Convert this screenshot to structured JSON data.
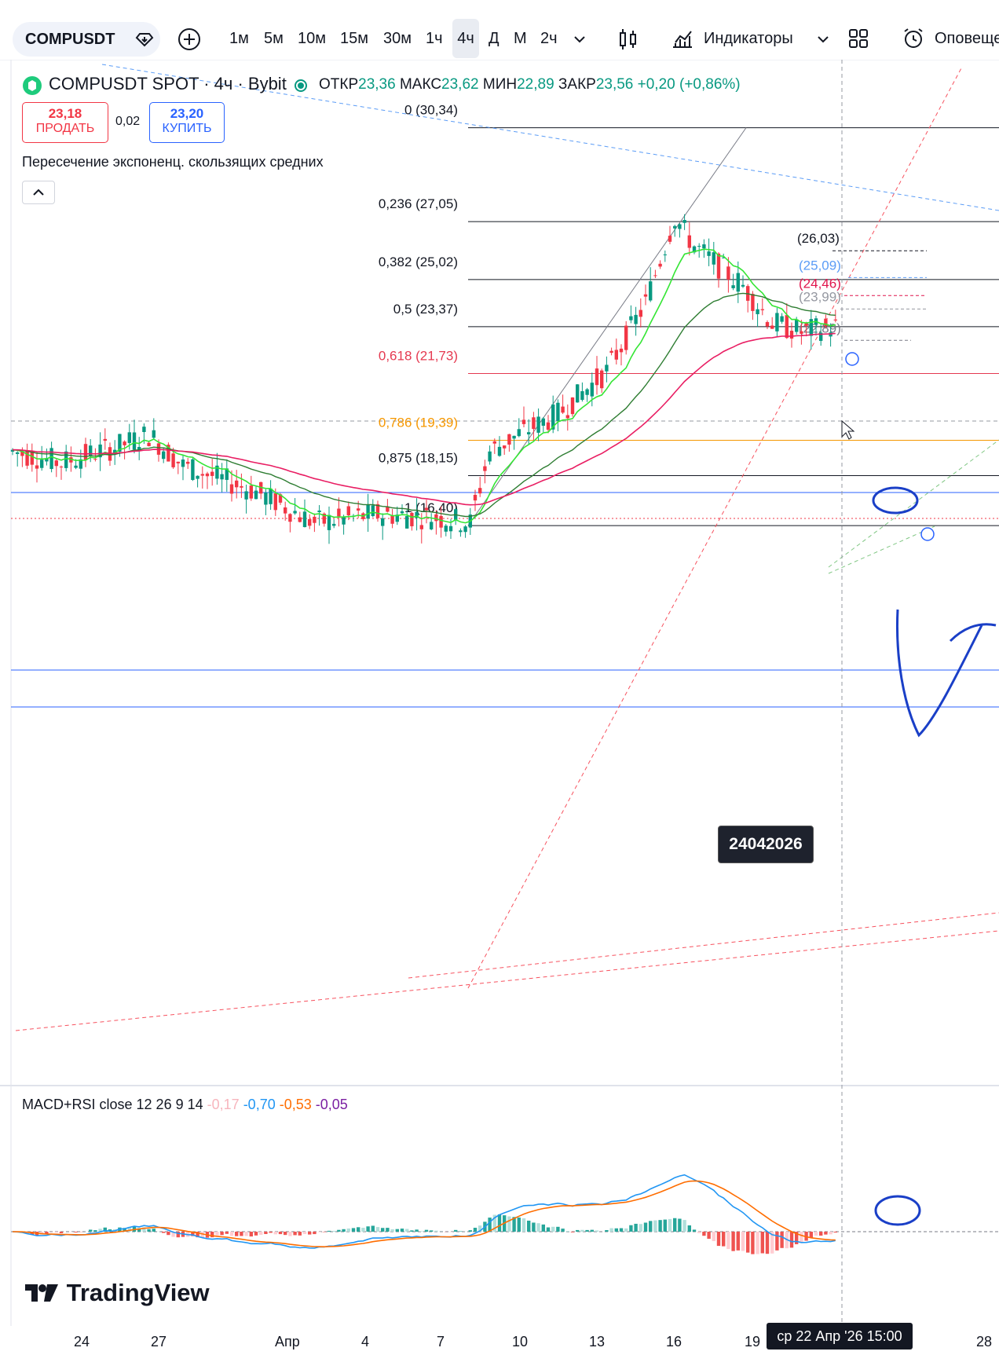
{
  "toolbar": {
    "symbol": "COMPUSDT",
    "intervals": [
      "1м",
      "5м",
      "10м",
      "15м",
      "30м",
      "1ч",
      "4ч",
      "Д",
      "М",
      "2ч"
    ],
    "active_interval": "4ч",
    "indicators_label": "Индикаторы",
    "alerts_label": "Оповеще"
  },
  "legend": {
    "title": "COMPUSDT SPOT · 4ч · Bybit",
    "open_label": "ОТКР",
    "open": "23,36",
    "high_label": "МАКС",
    "high": "23,62",
    "low_label": "МИН",
    "low": "22,89",
    "close_label": "ЗАКР",
    "close": "23,56",
    "change": "+0,20 (+0,86%)",
    "sell_price": "23,18",
    "sell_label": "ПРОДАТЬ",
    "spread": "0,02",
    "buy_price": "23,20",
    "buy_label": "КУПИТЬ",
    "indicator_name": "Пересечение экспоненц. скользящих средних"
  },
  "fib_levels": [
    {
      "label": "0 (30,34)",
      "price": 30.34,
      "color": "#131722"
    },
    {
      "label": "0,236 (27,05)",
      "price": 27.05,
      "color": "#131722"
    },
    {
      "label": "0,382 (25,02)",
      "price": 25.02,
      "color": "#131722"
    },
    {
      "label": "0,5 (23,37)",
      "price": 23.37,
      "color": "#131722"
    },
    {
      "label": "0,618 (21,73)",
      "price": 21.73,
      "color": "#e53950"
    },
    {
      "label": "0,786 (19,39)",
      "price": 19.39,
      "color": "#f59700"
    },
    {
      "label": "0,875 (18,15)",
      "price": 18.15,
      "color": "#131722"
    },
    {
      "label": "1 (16,40)",
      "price": 16.4,
      "color": "#131722"
    }
  ],
  "price_annotations": [
    {
      "label": "(26,03)",
      "price": 26.03,
      "color": "#131722"
    },
    {
      "label": "(25,09)",
      "price": 25.09,
      "color": "#5b9cf6"
    },
    {
      "label": "(24,46)",
      "price": 24.46,
      "color": "#e0144c"
    },
    {
      "label": "(23,99)",
      "price": 23.99,
      "color": "#9598a1"
    },
    {
      "label": "(22,89)",
      "price": 22.89,
      "color": "#787b86"
    }
  ],
  "date_note": "24042026",
  "macd_legend": {
    "name": "MACD+RSI close 12 26 9 14",
    "values": [
      {
        "text": "-0,17",
        "color": "#f7b5bd"
      },
      {
        "text": "-0,70",
        "color": "#2196f3"
      },
      {
        "text": "-0,53",
        "color": "#ff6d00"
      },
      {
        "text": "-0,05",
        "color": "#7b1fa2"
      }
    ]
  },
  "logo": "TradingView",
  "time_axis": [
    "24",
    "27",
    "Апр",
    "4",
    "7",
    "10",
    "13",
    "16",
    "19",
    "28"
  ],
  "crosshair_time": "ср 22 Апр '26   15:00",
  "colors": {
    "up": "#089981",
    "down": "#f23645",
    "ema_fast": "#34e534",
    "ema_mid": "#2e7d32",
    "ema_slow": "#e91e63"
  }
}
